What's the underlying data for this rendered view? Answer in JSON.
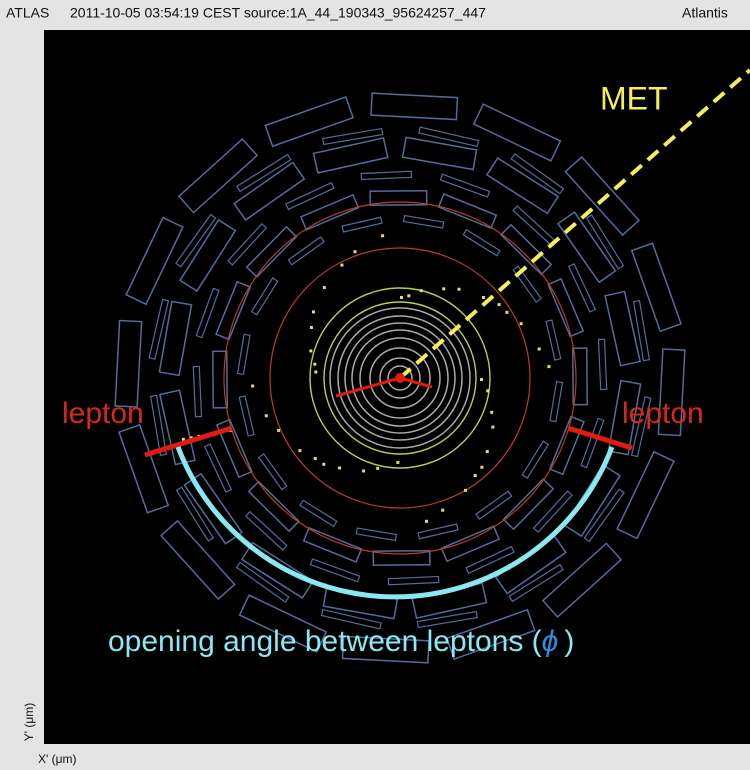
{
  "header": {
    "app": "ATLAS",
    "event": "2011-10-05 03:54:19 CEST source:1A_44_190343_95624257_447",
    "brand": "Atlantis"
  },
  "annotations": {
    "met": "MET",
    "lepton_left": "lepton",
    "lepton_right": "lepton",
    "angle_text": "opening angle between leptons (",
    "angle_symbol": "ϕ",
    "angle_close": ")"
  },
  "axes": {
    "y_label": "Y' (μm)",
    "x_label": "X' (μm)"
  }
}
